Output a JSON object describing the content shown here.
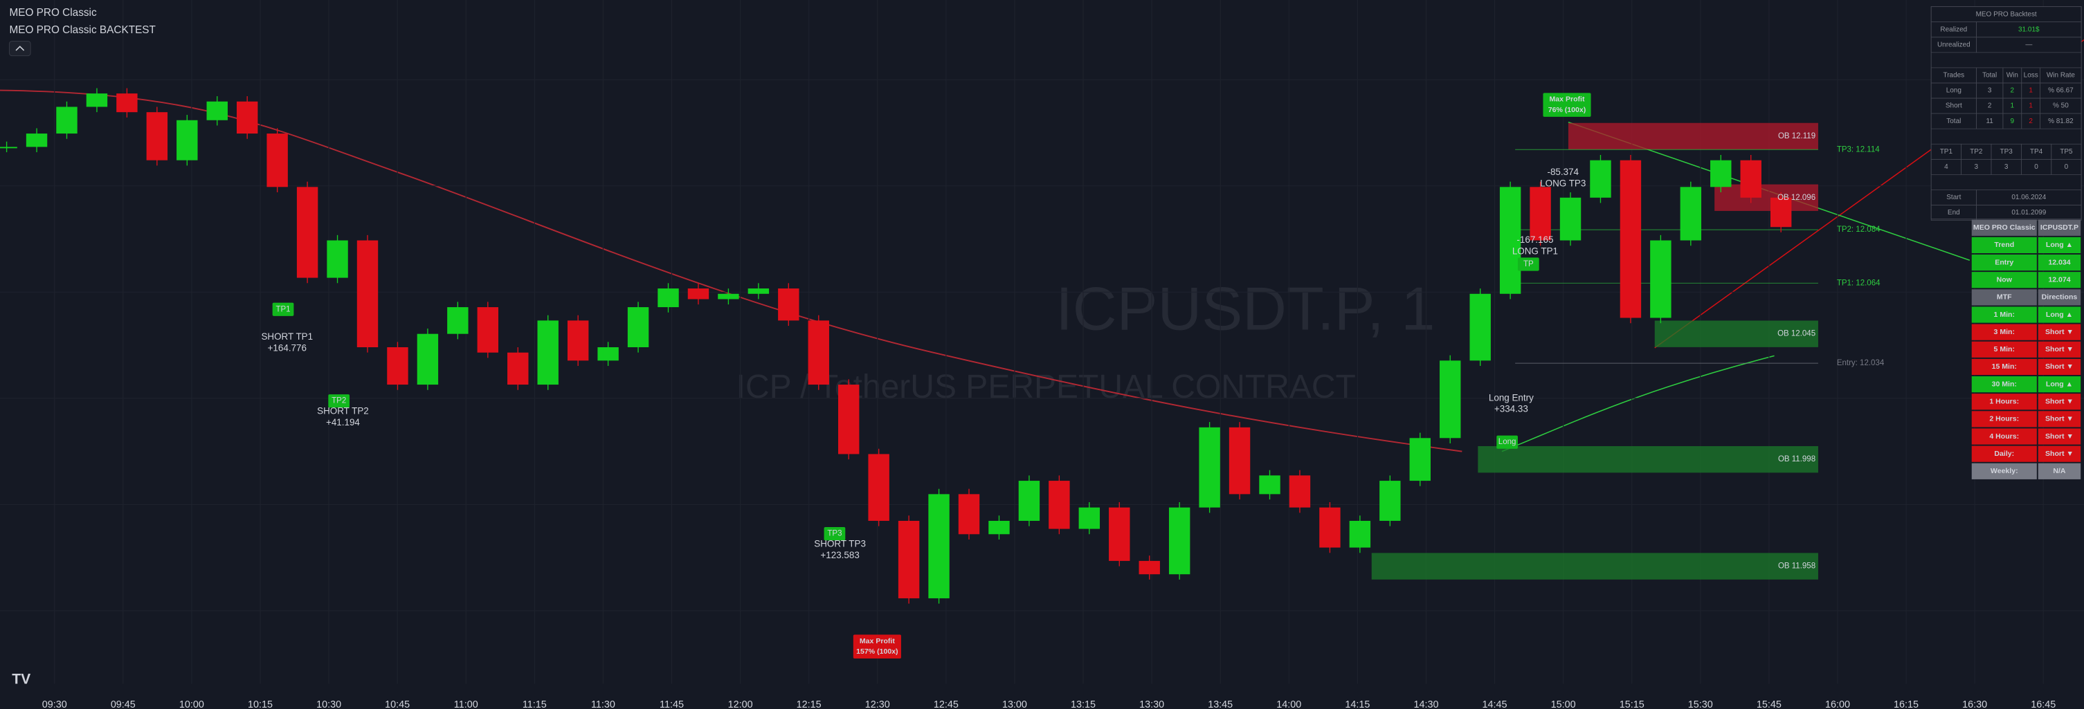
{
  "header": {
    "title": "MEO PRO Classic",
    "subtitle": "MEO PRO Classic BACKTEST"
  },
  "watermark": {
    "symbol": "ICPUSDT.P, 1",
    "description": "ICP / TetherUS PERPETUAL CONTRACT"
  },
  "chart": {
    "ylim": [
      11.914,
      12.17
    ],
    "closes": [
      12.115,
      12.12,
      12.13,
      12.135,
      12.128,
      12.11,
      12.125,
      12.132,
      12.12,
      12.1,
      12.066,
      12.08,
      12.04,
      12.026,
      12.045,
      12.055,
      12.038,
      12.026,
      12.05,
      12.035,
      12.04,
      12.055,
      12.062,
      12.058,
      12.06,
      12.062,
      12.05,
      12.026,
      12.0,
      11.975,
      11.946,
      11.985,
      11.97,
      11.975,
      11.99,
      11.972,
      11.98,
      11.96,
      11.955,
      11.98,
      12.01,
      11.985,
      11.992,
      11.98,
      11.965,
      11.975,
      11.99,
      12.006,
      12.035,
      12.06,
      12.1,
      12.08,
      12.096,
      12.11,
      12.051,
      12.08,
      12.1,
      12.11,
      12.096,
      12.085
    ],
    "time_labels": [
      "09:30",
      "09:45",
      "10:00",
      "10:15",
      "10:30",
      "10:45",
      "11:00",
      "11:15",
      "11:30",
      "11:45",
      "12:00",
      "12:15",
      "12:30",
      "12:45",
      "13:00",
      "13:15",
      "13:30",
      "13:45",
      "14:00",
      "14:15",
      "14:30",
      "14:45",
      "15:00",
      "15:15",
      "15:30",
      "15:45",
      "16:00",
      "16:15",
      "16:30",
      "16:45"
    ]
  },
  "zones": [
    {
      "label": "OB 12.119",
      "price": 12.119,
      "color": "#b2182b"
    },
    {
      "label": "OB 12.096",
      "price": 12.096,
      "color": "#b2182b"
    },
    {
      "label": "OB 12.045",
      "price": 12.045,
      "color": "#1b7a2a"
    },
    {
      "label": "OB 11.998",
      "price": 11.998,
      "color": "#1b7a2a"
    },
    {
      "label": "OB 11.958",
      "price": 11.958,
      "color": "#1b7a2a"
    }
  ],
  "levels": [
    {
      "label": "TP3: 12.114",
      "price": 12.114,
      "color": "#2ecc40"
    },
    {
      "label": "TP2: 12.084",
      "price": 12.084,
      "color": "#2ecc40"
    },
    {
      "label": "TP1: 12.064",
      "price": 12.064,
      "color": "#2ecc40"
    },
    {
      "label": "Entry: 12.034",
      "price": 12.034,
      "color": "#787b86"
    }
  ],
  "annotations": [
    {
      "tag": "TP1",
      "lines": [
        "SHORT TP1",
        "+164.776"
      ]
    },
    {
      "tag": "TP2",
      "lines": [
        "SHORT TP2",
        "+41.194"
      ]
    },
    {
      "tag": "TP3",
      "lines": [
        "SHORT TP3",
        "+123.583"
      ]
    },
    {
      "tag": "Long",
      "lines": [
        "Long Entry",
        "+334.33"
      ]
    },
    {
      "tag": "TP",
      "lines": [
        "-167.165",
        "LONG TP1"
      ]
    },
    {
      "lines": [
        "-85.374",
        "LONG TP3"
      ]
    }
  ],
  "max_profit": [
    {
      "lines": [
        "Max Profit",
        "157% (100x)"
      ],
      "color": "#d50f14"
    },
    {
      "lines": [
        "Max Profit",
        "76% (100x)"
      ],
      "color": "#12b81d"
    }
  ],
  "backtest": {
    "title": "MEO PRO Backtest",
    "realized": [
      "Realized",
      "31.01$"
    ],
    "unrealized": [
      "Unrealized",
      "—"
    ],
    "trades_header": [
      "Trades",
      "Total",
      "Win",
      "Loss",
      "Win Rate"
    ],
    "trades": [
      [
        "Long",
        "3",
        "2",
        "1",
        "% 66.67"
      ],
      [
        "Short",
        "2",
        "1",
        "1",
        "% 50"
      ],
      [
        "Total",
        "11",
        "9",
        "2",
        "% 81.82"
      ]
    ],
    "tp_header": [
      "TP1",
      "TP2",
      "TP3",
      "TP4",
      "TP5"
    ],
    "tp": [
      "4",
      "3",
      "3",
      "0",
      "0"
    ],
    "start": [
      "Start",
      "01.06.2024"
    ],
    "end": [
      "End",
      "01.01.2099"
    ]
  },
  "classic": {
    "header": [
      "MEO PRO Classic",
      "ICPUSDT.P"
    ],
    "rows": [
      {
        "cells": [
          "Trend",
          "Long ▲"
        ],
        "color": "#12b81d"
      },
      {
        "cells": [
          "Entry",
          "12.034"
        ],
        "color": "#12b81d"
      },
      {
        "cells": [
          "Now",
          "12.074"
        ],
        "color": "#12b81d"
      },
      {
        "cells": [
          "MTF",
          "Directions"
        ],
        "color": "#5d606b"
      },
      {
        "cells": [
          "1 Min:",
          "Long ▲"
        ],
        "color": "#12b81d"
      },
      {
        "cells": [
          "3 Min:",
          "Short ▼"
        ],
        "color": "#d50f14"
      },
      {
        "cells": [
          "5 Min:",
          "Short ▼"
        ],
        "color": "#d50f14"
      },
      {
        "cells": [
          "15 Min:",
          "Short ▼"
        ],
        "color": "#d50f14"
      },
      {
        "cells": [
          "30 Min:",
          "Long ▲"
        ],
        "color": "#12b81d"
      },
      {
        "cells": [
          "1 Hours:",
          "Short ▼"
        ],
        "color": "#d50f14"
      },
      {
        "cells": [
          "2 Hours:",
          "Short ▼"
        ],
        "color": "#d50f14"
      },
      {
        "cells": [
          "4 Hours:",
          "Short ▼"
        ],
        "color": "#d50f14"
      },
      {
        "cells": [
          "Daily:",
          "Short ▼"
        ],
        "color": "#d50f14"
      },
      {
        "cells": [
          "Weekly:",
          "N/A"
        ],
        "color": "#787b86"
      }
    ]
  }
}
